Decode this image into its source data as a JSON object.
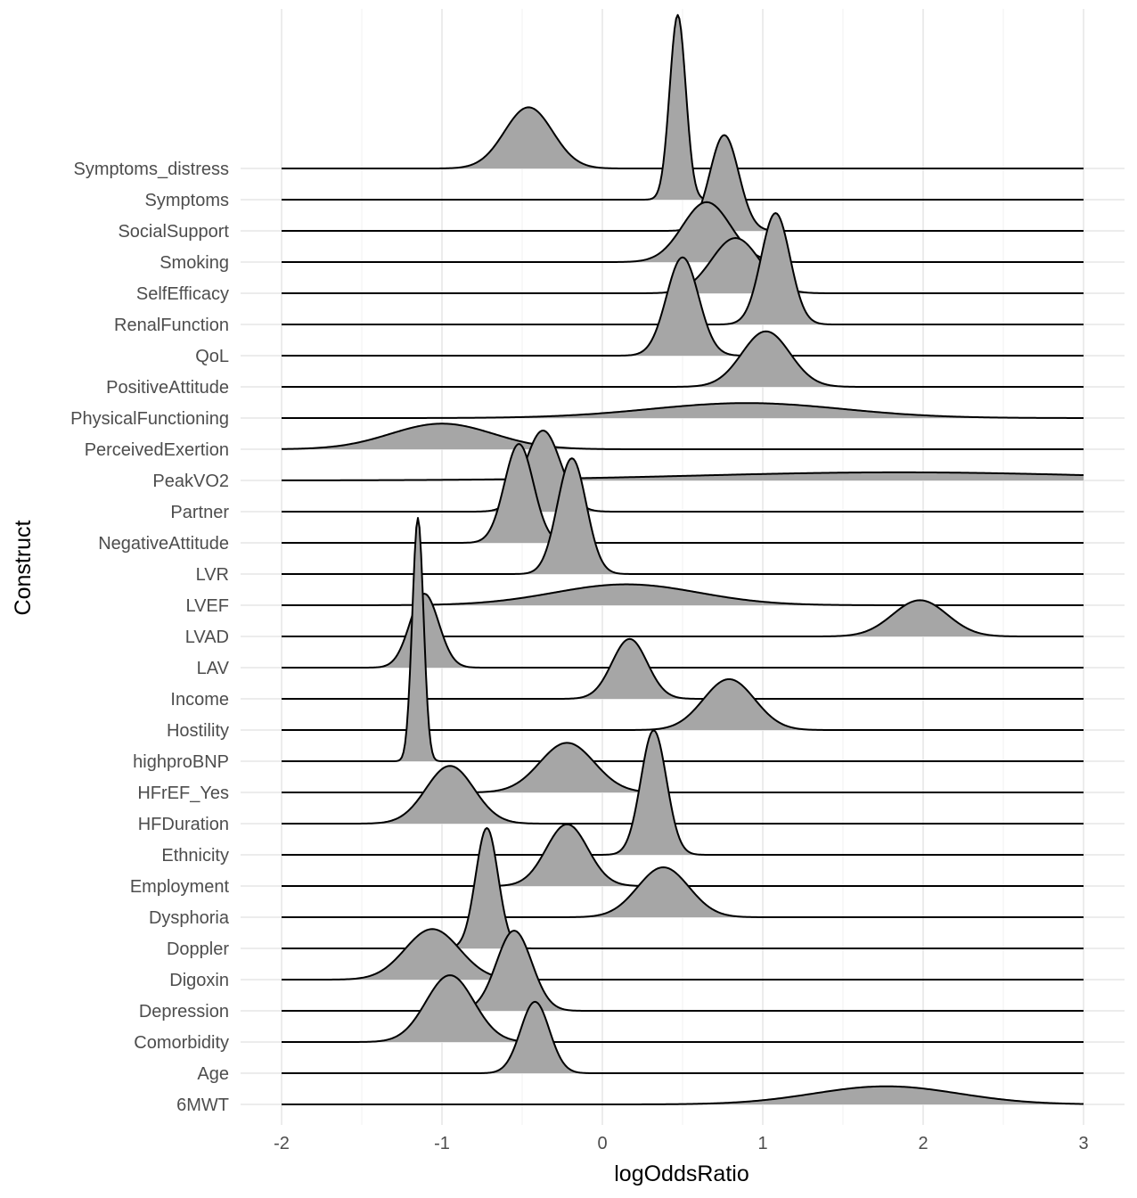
{
  "chart_data": {
    "type": "ridgeline",
    "xlabel": "logOddsRatio",
    "ylabel": "Construct",
    "xlim": [
      -2,
      3
    ],
    "xticks": [
      "-2",
      "-1",
      "0",
      "1",
      "2",
      "3"
    ],
    "grid": true,
    "fill_color": "#a6a6a6",
    "line_color": "#000000",
    "categories": [
      "6MWT",
      "Age",
      "Comorbidity",
      "Depression",
      "Digoxin",
      "Doppler",
      "Dysphoria",
      "Employment",
      "Ethnicity",
      "HFDuration",
      "HFrEF_Yes",
      "highproBNP",
      "Hostility",
      "Income",
      "LAV",
      "LVAD",
      "LVEF",
      "LVR",
      "NegativeAttitude",
      "Partner",
      "PeakVO2",
      "PerceivedExertion",
      "PhysicalFunctioning",
      "PositiveAttitude",
      "QoL",
      "RenalFunction",
      "SelfEfficacy",
      "Smoking",
      "SocialSupport",
      "Symptoms",
      "Symptoms_distress"
    ],
    "series": [
      {
        "name": "6MWT",
        "mean": 1.77,
        "sd": 0.45,
        "height": 0.58
      },
      {
        "name": "Age",
        "mean": -0.42,
        "sd": 0.09,
        "height": 2.29
      },
      {
        "name": "Comorbidity",
        "mean": -0.95,
        "sd": 0.15,
        "height": 2.14
      },
      {
        "name": "Depression",
        "mean": -0.55,
        "sd": 0.11,
        "height": 2.57
      },
      {
        "name": "Digoxin",
        "mean": -1.06,
        "sd": 0.17,
        "height": 1.62
      },
      {
        "name": "Doppler",
        "mean": -0.72,
        "sd": 0.07,
        "height": 3.86
      },
      {
        "name": "Dysphoria",
        "mean": 0.38,
        "sd": 0.16,
        "height": 1.6
      },
      {
        "name": "Employment",
        "mean": -0.22,
        "sd": 0.13,
        "height": 1.98
      },
      {
        "name": "Ethnicity",
        "mean": 0.32,
        "sd": 0.08,
        "height": 3.99
      },
      {
        "name": "HFDuration",
        "mean": -0.95,
        "sd": 0.15,
        "height": 1.85
      },
      {
        "name": "HFrEF_Yes",
        "mean": -0.22,
        "sd": 0.17,
        "height": 1.59
      },
      {
        "name": "highproBNP",
        "mean": -1.15,
        "sd": 0.035,
        "height": 7.8
      },
      {
        "name": "Hostility",
        "mean": 0.79,
        "sd": 0.16,
        "height": 1.63
      },
      {
        "name": "Income",
        "mean": 0.17,
        "sd": 0.11,
        "height": 1.92
      },
      {
        "name": "LAV",
        "mean": -1.11,
        "sd": 0.09,
        "height": 2.37
      },
      {
        "name": "LVAD",
        "mean": 1.98,
        "sd": 0.17,
        "height": 1.16
      },
      {
        "name": "LVEF",
        "mean": 0.15,
        "sd": 0.45,
        "height": 0.67
      },
      {
        "name": "LVR",
        "mean": -0.19,
        "sd": 0.09,
        "height": 3.71
      },
      {
        "name": "NegativeAttitude",
        "mean": -0.52,
        "sd": 0.09,
        "height": 3.17
      },
      {
        "name": "Partner",
        "mean": -0.37,
        "sd": 0.11,
        "height": 2.6
      },
      {
        "name": "PeakVO2",
        "mean": 1.85,
        "sd": 1.25,
        "height": 0.26
      },
      {
        "name": "PerceivedExertion",
        "mean": -1.0,
        "sd": 0.32,
        "height": 0.82
      },
      {
        "name": "PhysicalFunctioning",
        "mean": 0.9,
        "sd": 0.6,
        "height": 0.48
      },
      {
        "name": "PositiveAttitude",
        "mean": 1.02,
        "sd": 0.15,
        "height": 1.78
      },
      {
        "name": "QoL",
        "mean": 0.5,
        "sd": 0.1,
        "height": 3.15
      },
      {
        "name": "RenalFunction",
        "mean": 1.08,
        "sd": 0.09,
        "height": 3.57
      },
      {
        "name": "SelfEfficacy",
        "mean": 0.83,
        "sd": 0.15,
        "height": 1.77
      },
      {
        "name": "Smoking",
        "mean": 0.65,
        "sd": 0.15,
        "height": 1.92
      },
      {
        "name": "SocialSupport",
        "mean": 0.76,
        "sd": 0.09,
        "height": 3.07
      },
      {
        "name": "Symptoms",
        "mean": 0.47,
        "sd": 0.05,
        "height": 5.92
      },
      {
        "name": "Symptoms_distress",
        "mean": -0.46,
        "sd": 0.15,
        "height": 1.96
      }
    ]
  }
}
